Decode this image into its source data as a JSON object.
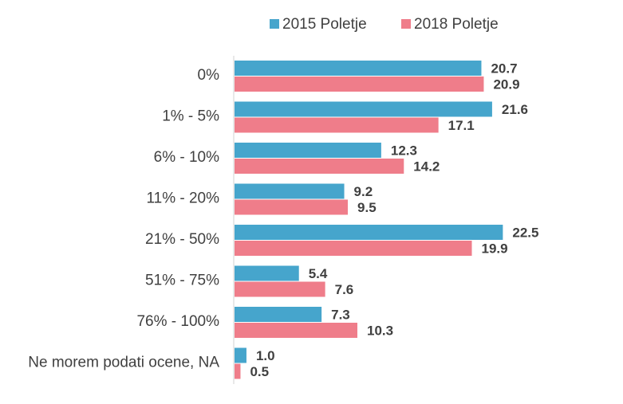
{
  "chart_data": {
    "type": "bar",
    "orientation": "horizontal",
    "title": "",
    "xlabel": "",
    "ylabel": "",
    "categories": [
      "0%",
      "1% - 5%",
      "6% - 10%",
      "11% - 20%",
      "21% - 50%",
      "51% - 75%",
      "76% - 100%",
      "Ne morem podati ocene, NA"
    ],
    "series": [
      {
        "name": "2015 Poletje",
        "color": "#46A5CC",
        "values": [
          20.7,
          21.6,
          12.3,
          9.2,
          22.5,
          5.4,
          7.3,
          1.0
        ],
        "labels": [
          "20.7",
          "21.6",
          "12.3",
          "9.2",
          "22.5",
          "5.4",
          "7.3",
          "1.0"
        ]
      },
      {
        "name": "2018 Poletje",
        "color": "#EF7D8A",
        "values": [
          20.9,
          17.1,
          14.2,
          9.5,
          19.9,
          7.6,
          10.3,
          0.5
        ],
        "labels": [
          "20.9",
          "17.1",
          "14.2",
          "9.5",
          "19.9",
          "7.6",
          "10.3",
          "0.5"
        ]
      }
    ],
    "xlim": [
      0,
      24
    ],
    "grid": false,
    "legend_position": "top"
  }
}
